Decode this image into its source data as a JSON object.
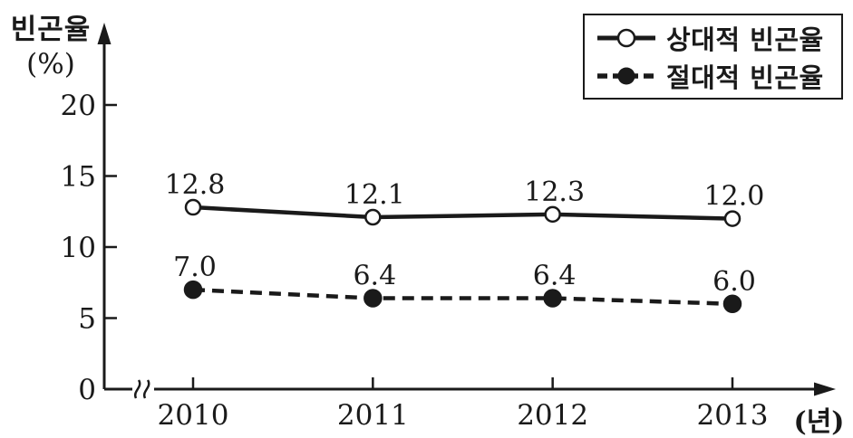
{
  "colors": {
    "ink": "#1a1a1a",
    "background": "#ffffff"
  },
  "chart_data": {
    "type": "line",
    "title": "",
    "ylabel": "빈곤율",
    "ylabel_unit": "(%)",
    "x_unit": "(년)",
    "categories": [
      "2010",
      "2011",
      "2012",
      "2013"
    ],
    "yticks": [
      "0",
      "5",
      "10",
      "15",
      "20"
    ],
    "ylim": [
      0,
      22
    ],
    "grid": false,
    "legend_position": "top-right",
    "x_axis_break": true,
    "series": [
      {
        "name": "상대적 빈곤율",
        "values": [
          12.8,
          12.1,
          12.3,
          12.0
        ],
        "labels": [
          "12.8",
          "12.1",
          "12.3",
          "12.0"
        ],
        "line_style": "solid",
        "marker": "open-circle"
      },
      {
        "name": "절대적 빈곤율",
        "values": [
          7.0,
          6.4,
          6.4,
          6.0
        ],
        "labels": [
          "7.0",
          "6.4",
          "6.4",
          "6.0"
        ],
        "line_style": "dashed",
        "marker": "filled-circle"
      }
    ]
  }
}
